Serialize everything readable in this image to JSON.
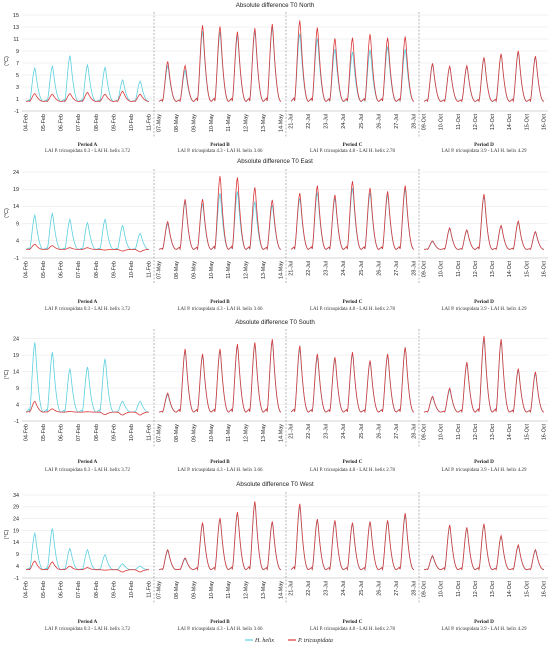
{
  "colors": {
    "h_helix": "#5ccfe0",
    "p_tricuspidata": "#d9383a",
    "grid": "#e4e4e4",
    "divider": "#888888"
  },
  "legend": [
    {
      "key": "h_helix",
      "label": "H. helix"
    },
    {
      "key": "p_tricuspidata",
      "label": "P. tricuspidata"
    }
  ],
  "periods": [
    {
      "label": "Period A",
      "lai": "LAI P. tricuspidata 0.3 - LAI H. helix 3.72",
      "ticks": [
        "04-Feb",
        "05-Feb",
        "06-Feb",
        "07-Feb",
        "08-Feb",
        "09-Feb",
        "10-Feb",
        "11-Feb"
      ]
    },
    {
      "label": "Period B",
      "lai": "LAI P. tricuspidata 4.3 - LAI H. helix 3.66",
      "ticks": [
        "07-May",
        "08-May",
        "09-May",
        "10-May",
        "11-May",
        "12-May",
        "13-May",
        "14-May"
      ]
    },
    {
      "label": "Period C",
      "lai": "LAI P. tricuspidata 4.8 - LAI H. helix 2.78",
      "ticks": [
        "21-Jul",
        "22-Jul",
        "23-Jul",
        "24-Jul",
        "25-Jul",
        "26-Jul",
        "27-Jul",
        "28-Jul"
      ]
    },
    {
      "label": "Period D",
      "lai": "LAI P. tricuspidata 3.9 - LAI H. helix 4.29",
      "ticks": [
        "09-Oct",
        "10-Oct",
        "11-Oct",
        "12-Oct",
        "13-Oct",
        "14-Oct",
        "15-Oct",
        "16-Oct"
      ]
    }
  ],
  "chart_data": [
    {
      "type": "line",
      "title": "Absolute difference T0 North",
      "ylabel": "(°C)",
      "yticks": [
        -1,
        1,
        3,
        5,
        7,
        9,
        11,
        13,
        15
      ],
      "ylim": [
        -1,
        15
      ],
      "series": [
        {
          "name": "H. helix",
          "daily_peaks": {
            "A": [
              6.2,
              6.5,
              8.3,
              6.7,
              6.3,
              4.2,
              4.0
            ],
            "B": [
              6.6,
              5.8,
              12.4,
              12.2,
              11.6,
              12.4,
              13.0
            ],
            "C": [
              12.0,
              11.2,
              9.4,
              8.9,
              9.3,
              9.8,
              9.4
            ],
            "D": [
              6.8,
              6.4,
              6.4,
              7.9,
              8.5,
              8.9,
              8.1
            ]
          }
        },
        {
          "name": "P. tricuspidata",
          "daily_peaks": {
            "A": [
              1.9,
              1.8,
              1.9,
              2.1,
              1.8,
              2.3,
              1.8
            ],
            "B": [
              7.3,
              6.6,
              13.4,
              13.2,
              12.3,
              12.9,
              13.6
            ],
            "C": [
              14.2,
              13.0,
              11.2,
              11.3,
              11.9,
              11.3,
              11.5
            ],
            "D": [
              7.0,
              6.5,
              6.6,
              8.0,
              8.6,
              9.1,
              8.2
            ]
          }
        }
      ]
    },
    {
      "type": "line",
      "title": "Absolute difference T0 East",
      "ylabel": "(°C)",
      "yticks": [
        -1,
        4,
        9,
        14,
        19,
        24
      ],
      "ylim": [
        -1,
        24
      ],
      "series": [
        {
          "name": "H. helix",
          "daily_peaks": {
            "A": [
              11.5,
              12.0,
              10.3,
              9.3,
              10.3,
              8.5,
              6.2
            ],
            "B": [
              9.0,
              15.5,
              15.0,
              18.0,
              18.5,
              15.5,
              14.5
            ],
            "C": [
              16.5,
              18.2,
              16.5,
              19.5,
              18.0,
              17.5,
              19.2
            ],
            "D": [
              3.8,
              7.5,
              7.0,
              17.2,
              8.3,
              9.5,
              6.5
            ]
          }
        },
        {
          "name": "P. tricuspidata",
          "daily_peaks": {
            "A": [
              3.0,
              2.6,
              2.0,
              2.0,
              1.3,
              1.0,
              0.8
            ],
            "B": [
              9.6,
              16.2,
              16.2,
              23.0,
              22.6,
              19.7,
              16.0
            ],
            "C": [
              18.0,
              20.2,
              17.5,
              21.5,
              19.5,
              18.5,
              20.2
            ],
            "D": [
              4.0,
              7.8,
              7.2,
              17.7,
              8.5,
              9.8,
              6.7
            ]
          }
        }
      ]
    },
    {
      "type": "line",
      "title": "Absolute difference T0 South",
      "ylabel": "(°C)",
      "yticks": [
        -1,
        4,
        9,
        14,
        19,
        24
      ],
      "ylim": [
        -1,
        26
      ],
      "series": [
        {
          "name": "H. helix",
          "daily_peaks": {
            "A": [
              23.0,
              20.0,
              15.0,
              15.5,
              18.0,
              5.0,
              5.0
            ],
            "B": [
              7.0,
              20.5,
              19.0,
              20.5,
              22.0,
              22.5,
              23.5
            ],
            "C": [
              21.0,
              18.5,
              18.0,
              19.5,
              17.0,
              19.0,
              21.5
            ],
            "D": [
              6.2,
              8.5,
              16.5,
              24.0,
              23.5,
              14.5,
              13.5
            ]
          }
        },
        {
          "name": "P. tricuspidata",
          "daily_peaks": {
            "A": [
              5.0,
              2.7,
              1.9,
              1.8,
              0.9,
              0.8,
              0.8
            ],
            "B": [
              7.5,
              21.0,
              19.5,
              21.0,
              22.5,
              23.0,
              24.0
            ],
            "C": [
              22.0,
              19.5,
              18.5,
              20.0,
              17.5,
              19.5,
              21.5
            ],
            "D": [
              6.5,
              9.0,
              17.0,
              25.0,
              24.0,
              15.0,
              14.0
            ]
          }
        }
      ]
    },
    {
      "type": "line",
      "title": "Absolute difference T0 West",
      "ylabel": "(°C)",
      "yticks": [
        -1,
        4,
        9,
        14,
        19,
        24,
        29,
        34
      ],
      "ylim": [
        -1,
        34
      ],
      "series": [
        {
          "name": "H. helix",
          "daily_peaks": {
            "A": [
              18.0,
              20.0,
              11.5,
              11.0,
              8.8,
              5.0,
              4.0
            ],
            "B": [
              10.5,
              7.0,
              22.0,
              24.0,
              26.5,
              31.0,
              22.5
            ],
            "C": [
              29.5,
              23.5,
              23.0,
              22.0,
              22.5,
              23.0,
              25.5
            ],
            "D": [
              8.0,
              21.0,
              20.0,
              21.5,
              16.5,
              12.5,
              10.5
            ]
          }
        },
        {
          "name": "P. tricuspidata",
          "daily_peaks": {
            "A": [
              6.2,
              5.8,
              4.0,
              3.4,
              2.3,
              1.5,
              1.5
            ],
            "B": [
              11.0,
              7.5,
              22.5,
              24.5,
              27.0,
              31.5,
              23.0
            ],
            "C": [
              30.5,
              24.0,
              23.5,
              22.5,
              23.0,
              23.5,
              26.5
            ],
            "D": [
              8.5,
              21.5,
              20.5,
              22.0,
              17.0,
              13.0,
              11.0
            ]
          }
        }
      ]
    }
  ]
}
